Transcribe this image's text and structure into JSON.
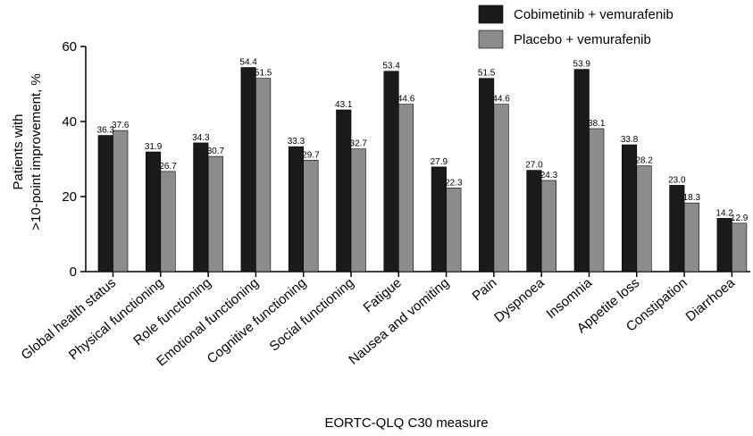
{
  "chart_data": {
    "type": "bar",
    "categories": [
      "Global health status",
      "Physical functioning",
      "Role functioning",
      "Emotional functioning",
      "Cognitive functioning",
      "Social functioning",
      "Fatigue",
      "Nausea and vomiting",
      "Pain",
      "Dyspnoea",
      "Insomnia",
      "Appetite loss",
      "Constipation",
      "Diarrhoea"
    ],
    "series": [
      {
        "name": "Cobimetinib + vemurafenib",
        "color": "#1a1a1a",
        "values": [
          36.3,
          31.9,
          34.3,
          54.4,
          33.3,
          43.1,
          53.4,
          27.9,
          51.5,
          27.0,
          53.9,
          33.8,
          23.0,
          14.2
        ],
        "labels": [
          "36.3",
          "31.9",
          "34.3",
          "54.4",
          "33.3",
          "43.1",
          "53.4",
          "27.9",
          "51.5",
          "27.0",
          "53.9",
          "33.8",
          "23.0",
          "14.2"
        ]
      },
      {
        "name": "Placebo + vemurafenib",
        "color": "#8c8c8c",
        "values": [
          37.6,
          26.7,
          30.7,
          51.5,
          29.7,
          32.7,
          44.6,
          22.3,
          44.6,
          24.3,
          38.1,
          28.2,
          18.3,
          12.9
        ],
        "labels": [
          "37.6",
          "26.7",
          "30.7",
          "51.5",
          "29.7",
          "32.7",
          "44.6",
          "22.3",
          "44.6",
          "24.3",
          "38.1",
          "28.2",
          "18.3",
          "12.9"
        ]
      }
    ],
    "title": "",
    "xlabel": "EORTC-QLQ C30 measure",
    "ylabel_lines": [
      "Patients with",
      ">10-point improvement, %"
    ],
    "ylim": [
      0,
      60
    ],
    "yticks": [
      "0",
      "20",
      "40",
      "60"
    ],
    "grid": false,
    "legend_position": "top-right"
  }
}
